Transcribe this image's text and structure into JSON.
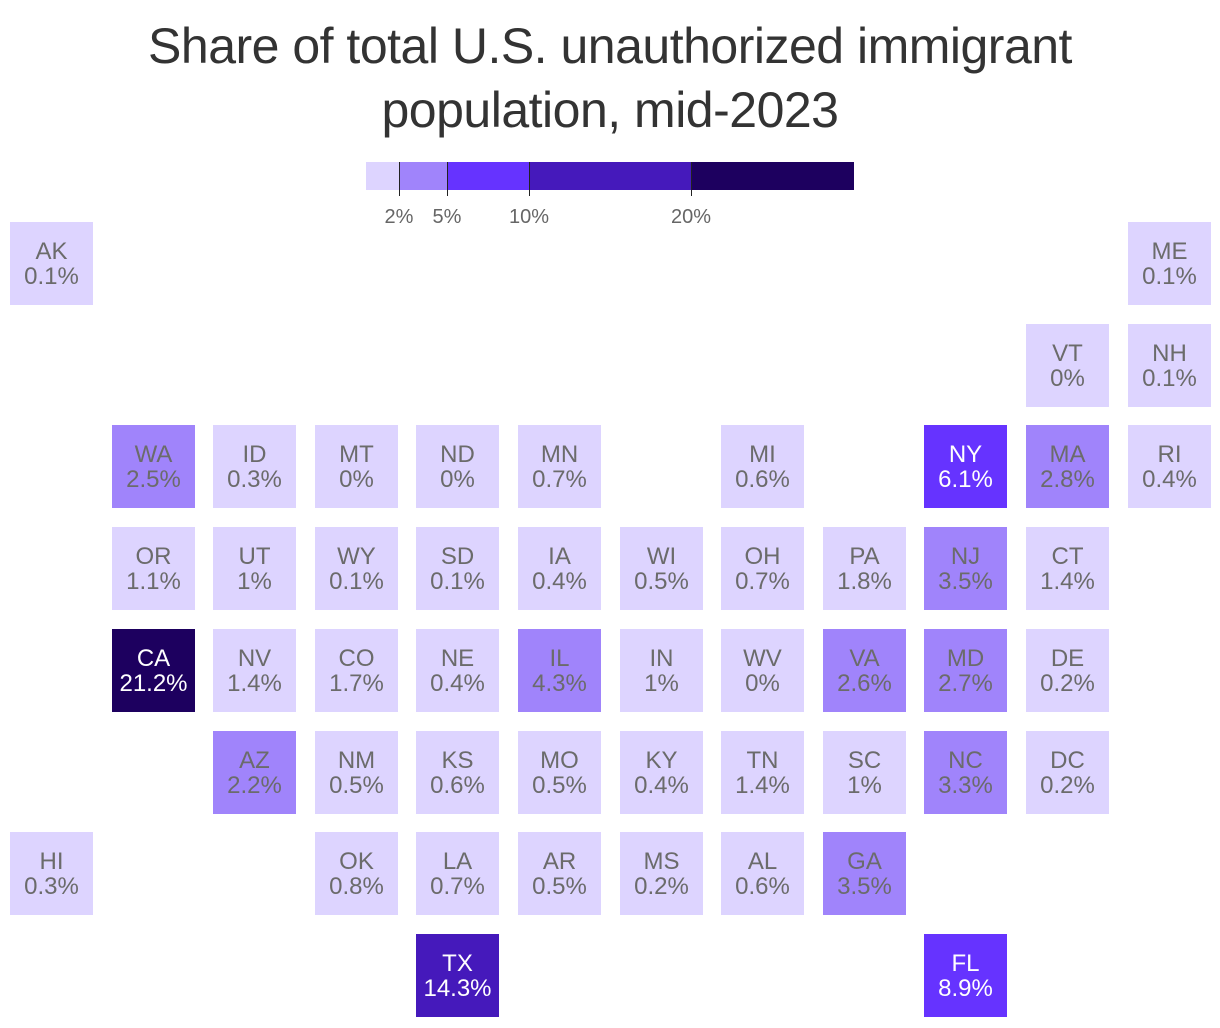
{
  "title": {
    "line1": "Share of total U.S. unauthorized immigrant",
    "line2": "population, mid-2023"
  },
  "legend": {
    "ticks": [
      {
        "value": 2,
        "label": "2%"
      },
      {
        "value": 5,
        "label": "5%"
      },
      {
        "value": 10,
        "label": "10%"
      },
      {
        "value": 20,
        "label": "20%"
      }
    ],
    "bins": [
      {
        "from": 0,
        "to": 2,
        "color": "#ddd4ff"
      },
      {
        "from": 2,
        "to": 5,
        "color": "#a084fb"
      },
      {
        "from": 5,
        "to": 10,
        "color": "#6633ff"
      },
      {
        "from": 10,
        "to": 20,
        "color": "#4519bb"
      },
      {
        "from": 20,
        "to": 30,
        "color": "#1d005f"
      }
    ]
  },
  "states": [
    {
      "abbr": "AK",
      "value": 0.1,
      "label": "0.1%",
      "col": 0,
      "row": 0
    },
    {
      "abbr": "ME",
      "value": 0.1,
      "label": "0.1%",
      "col": 11,
      "row": 0
    },
    {
      "abbr": "VT",
      "value": 0,
      "label": "0%",
      "col": 10,
      "row": 1
    },
    {
      "abbr": "NH",
      "value": 0.1,
      "label": "0.1%",
      "col": 11,
      "row": 1
    },
    {
      "abbr": "WA",
      "value": 2.5,
      "label": "2.5%",
      "col": 1,
      "row": 2
    },
    {
      "abbr": "ID",
      "value": 0.3,
      "label": "0.3%",
      "col": 2,
      "row": 2
    },
    {
      "abbr": "MT",
      "value": 0,
      "label": "0%",
      "col": 3,
      "row": 2
    },
    {
      "abbr": "ND",
      "value": 0,
      "label": "0%",
      "col": 4,
      "row": 2
    },
    {
      "abbr": "MN",
      "value": 0.7,
      "label": "0.7%",
      "col": 5,
      "row": 2
    },
    {
      "abbr": "MI",
      "value": 0.6,
      "label": "0.6%",
      "col": 7,
      "row": 2
    },
    {
      "abbr": "NY",
      "value": 6.1,
      "label": "6.1%",
      "col": 9,
      "row": 2
    },
    {
      "abbr": "MA",
      "value": 2.8,
      "label": "2.8%",
      "col": 10,
      "row": 2
    },
    {
      "abbr": "RI",
      "value": 0.4,
      "label": "0.4%",
      "col": 11,
      "row": 2
    },
    {
      "abbr": "OR",
      "value": 1.1,
      "label": "1.1%",
      "col": 1,
      "row": 3
    },
    {
      "abbr": "UT",
      "value": 1,
      "label": "1%",
      "col": 2,
      "row": 3
    },
    {
      "abbr": "WY",
      "value": 0.1,
      "label": "0.1%",
      "col": 3,
      "row": 3
    },
    {
      "abbr": "SD",
      "value": 0.1,
      "label": "0.1%",
      "col": 4,
      "row": 3
    },
    {
      "abbr": "IA",
      "value": 0.4,
      "label": "0.4%",
      "col": 5,
      "row": 3
    },
    {
      "abbr": "WI",
      "value": 0.5,
      "label": "0.5%",
      "col": 6,
      "row": 3
    },
    {
      "abbr": "OH",
      "value": 0.7,
      "label": "0.7%",
      "col": 7,
      "row": 3
    },
    {
      "abbr": "PA",
      "value": 1.8,
      "label": "1.8%",
      "col": 8,
      "row": 3
    },
    {
      "abbr": "NJ",
      "value": 3.5,
      "label": "3.5%",
      "col": 9,
      "row": 3
    },
    {
      "abbr": "CT",
      "value": 1.4,
      "label": "1.4%",
      "col": 10,
      "row": 3
    },
    {
      "abbr": "CA",
      "value": 21.2,
      "label": "21.2%",
      "col": 1,
      "row": 4
    },
    {
      "abbr": "NV",
      "value": 1.4,
      "label": "1.4%",
      "col": 2,
      "row": 4
    },
    {
      "abbr": "CO",
      "value": 1.7,
      "label": "1.7%",
      "col": 3,
      "row": 4
    },
    {
      "abbr": "NE",
      "value": 0.4,
      "label": "0.4%",
      "col": 4,
      "row": 4
    },
    {
      "abbr": "IL",
      "value": 4.3,
      "label": "4.3%",
      "col": 5,
      "row": 4
    },
    {
      "abbr": "IN",
      "value": 1,
      "label": "1%",
      "col": 6,
      "row": 4
    },
    {
      "abbr": "WV",
      "value": 0,
      "label": "0%",
      "col": 7,
      "row": 4
    },
    {
      "abbr": "VA",
      "value": 2.6,
      "label": "2.6%",
      "col": 8,
      "row": 4
    },
    {
      "abbr": "MD",
      "value": 2.7,
      "label": "2.7%",
      "col": 9,
      "row": 4
    },
    {
      "abbr": "DE",
      "value": 0.2,
      "label": "0.2%",
      "col": 10,
      "row": 4
    },
    {
      "abbr": "AZ",
      "value": 2.2,
      "label": "2.2%",
      "col": 2,
      "row": 5
    },
    {
      "abbr": "NM",
      "value": 0.5,
      "label": "0.5%",
      "col": 3,
      "row": 5
    },
    {
      "abbr": "KS",
      "value": 0.6,
      "label": "0.6%",
      "col": 4,
      "row": 5
    },
    {
      "abbr": "MO",
      "value": 0.5,
      "label": "0.5%",
      "col": 5,
      "row": 5
    },
    {
      "abbr": "KY",
      "value": 0.4,
      "label": "0.4%",
      "col": 6,
      "row": 5
    },
    {
      "abbr": "TN",
      "value": 1.4,
      "label": "1.4%",
      "col": 7,
      "row": 5
    },
    {
      "abbr": "SC",
      "value": 1,
      "label": "1%",
      "col": 8,
      "row": 5
    },
    {
      "abbr": "NC",
      "value": 3.3,
      "label": "3.3%",
      "col": 9,
      "row": 5
    },
    {
      "abbr": "DC",
      "value": 0.2,
      "label": "0.2%",
      "col": 10,
      "row": 5
    },
    {
      "abbr": "HI",
      "value": 0.3,
      "label": "0.3%",
      "col": 0,
      "row": 6
    },
    {
      "abbr": "OK",
      "value": 0.8,
      "label": "0.8%",
      "col": 3,
      "row": 6
    },
    {
      "abbr": "LA",
      "value": 0.7,
      "label": "0.7%",
      "col": 4,
      "row": 6
    },
    {
      "abbr": "AR",
      "value": 0.5,
      "label": "0.5%",
      "col": 5,
      "row": 6
    },
    {
      "abbr": "MS",
      "value": 0.2,
      "label": "0.2%",
      "col": 6,
      "row": 6
    },
    {
      "abbr": "AL",
      "value": 0.6,
      "label": "0.6%",
      "col": 7,
      "row": 6
    },
    {
      "abbr": "GA",
      "value": 3.5,
      "label": "3.5%",
      "col": 8,
      "row": 6
    },
    {
      "abbr": "TX",
      "value": 14.3,
      "label": "14.3%",
      "col": 4,
      "row": 7
    },
    {
      "abbr": "FL",
      "value": 8.9,
      "label": "8.9%",
      "col": 9,
      "row": 7
    }
  ]
}
